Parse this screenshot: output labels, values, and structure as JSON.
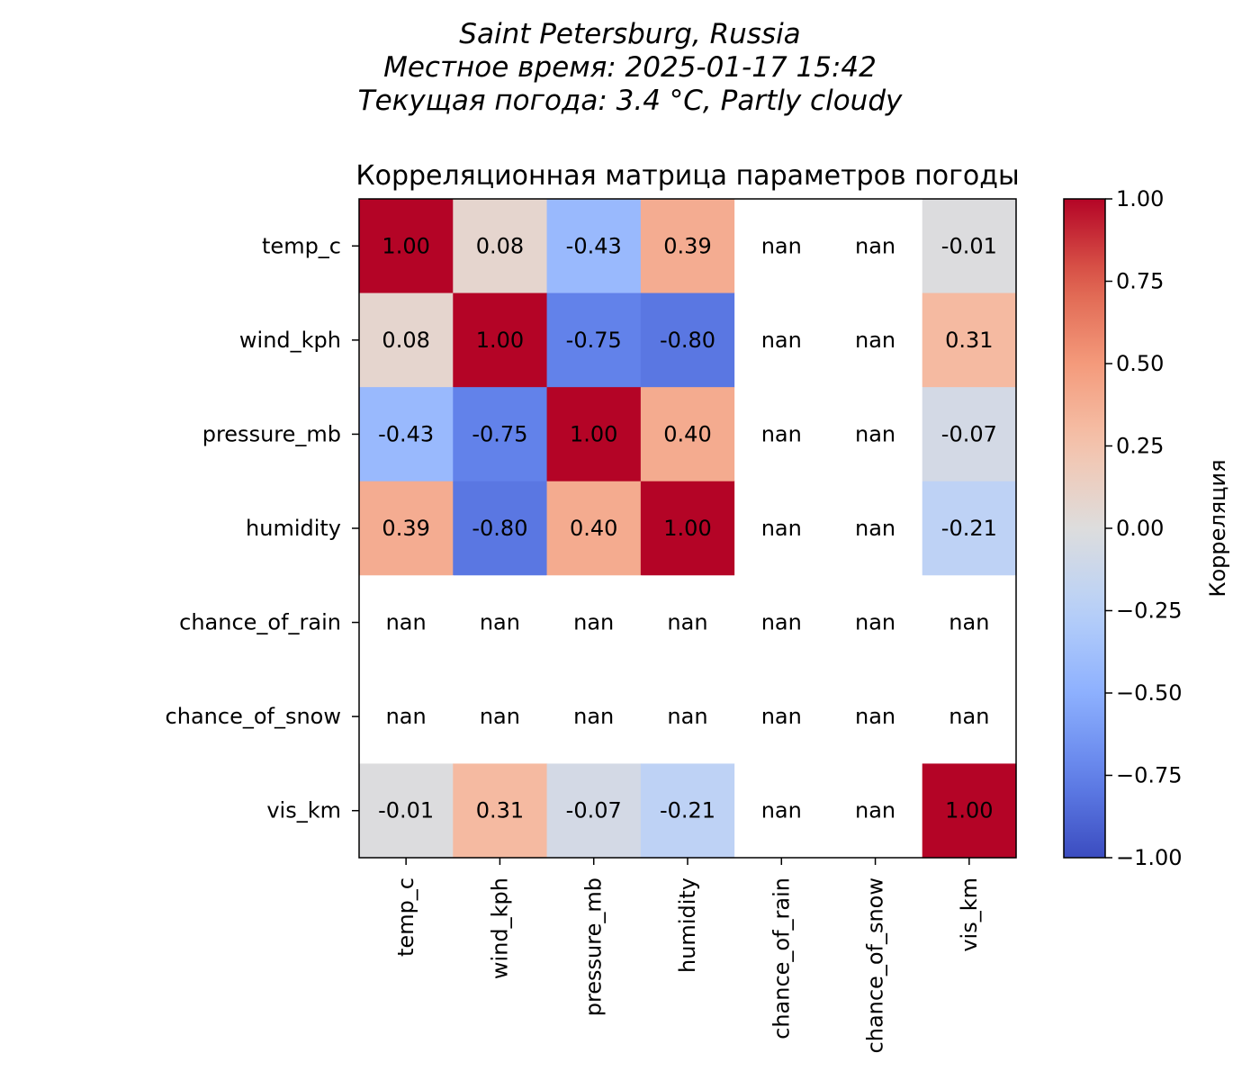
{
  "header": {
    "lines": [
      "Saint Petersburg, Russia",
      "Местное время: 2025-01-17 15:42",
      "Текущая погода: 3.4 °C, Partly cloudy"
    ]
  },
  "chart_data": {
    "type": "heatmap",
    "title": "Корреляционная матрица параметров погоды",
    "x_labels": [
      "temp_c",
      "wind_kph",
      "pressure_mb",
      "humidity",
      "chance_of_rain",
      "chance_of_snow",
      "vis_km"
    ],
    "y_labels": [
      "temp_c",
      "wind_kph",
      "pressure_mb",
      "humidity",
      "chance_of_rain",
      "chance_of_snow",
      "vis_km"
    ],
    "values": [
      [
        1.0,
        0.08,
        -0.43,
        0.39,
        null,
        null,
        -0.01
      ],
      [
        0.08,
        1.0,
        -0.75,
        -0.8,
        null,
        null,
        0.31
      ],
      [
        -0.43,
        -0.75,
        1.0,
        0.4,
        null,
        null,
        -0.07
      ],
      [
        0.39,
        -0.8,
        0.4,
        1.0,
        null,
        null,
        -0.21
      ],
      [
        null,
        null,
        null,
        null,
        null,
        null,
        null
      ],
      [
        null,
        null,
        null,
        null,
        null,
        null,
        null
      ],
      [
        -0.01,
        0.31,
        -0.07,
        -0.21,
        null,
        null,
        1.0
      ]
    ],
    "missing_label": "nan",
    "colormap": "coolwarm",
    "vmin": -1.0,
    "vmax": 1.0,
    "colorbar": {
      "label": "Корреляция",
      "ticks": [
        1.0,
        0.75,
        0.5,
        0.25,
        0.0,
        -0.25,
        -0.5,
        -0.75,
        -1.0
      ],
      "tick_labels": [
        "1.00",
        "0.75",
        "0.50",
        "0.25",
        "0.00",
        "−0.25",
        "−0.50",
        "−0.75",
        "−1.00"
      ]
    },
    "colors": {
      "min": "#3b4cc0",
      "mid": "#dddddd",
      "max": "#b40426"
    }
  }
}
